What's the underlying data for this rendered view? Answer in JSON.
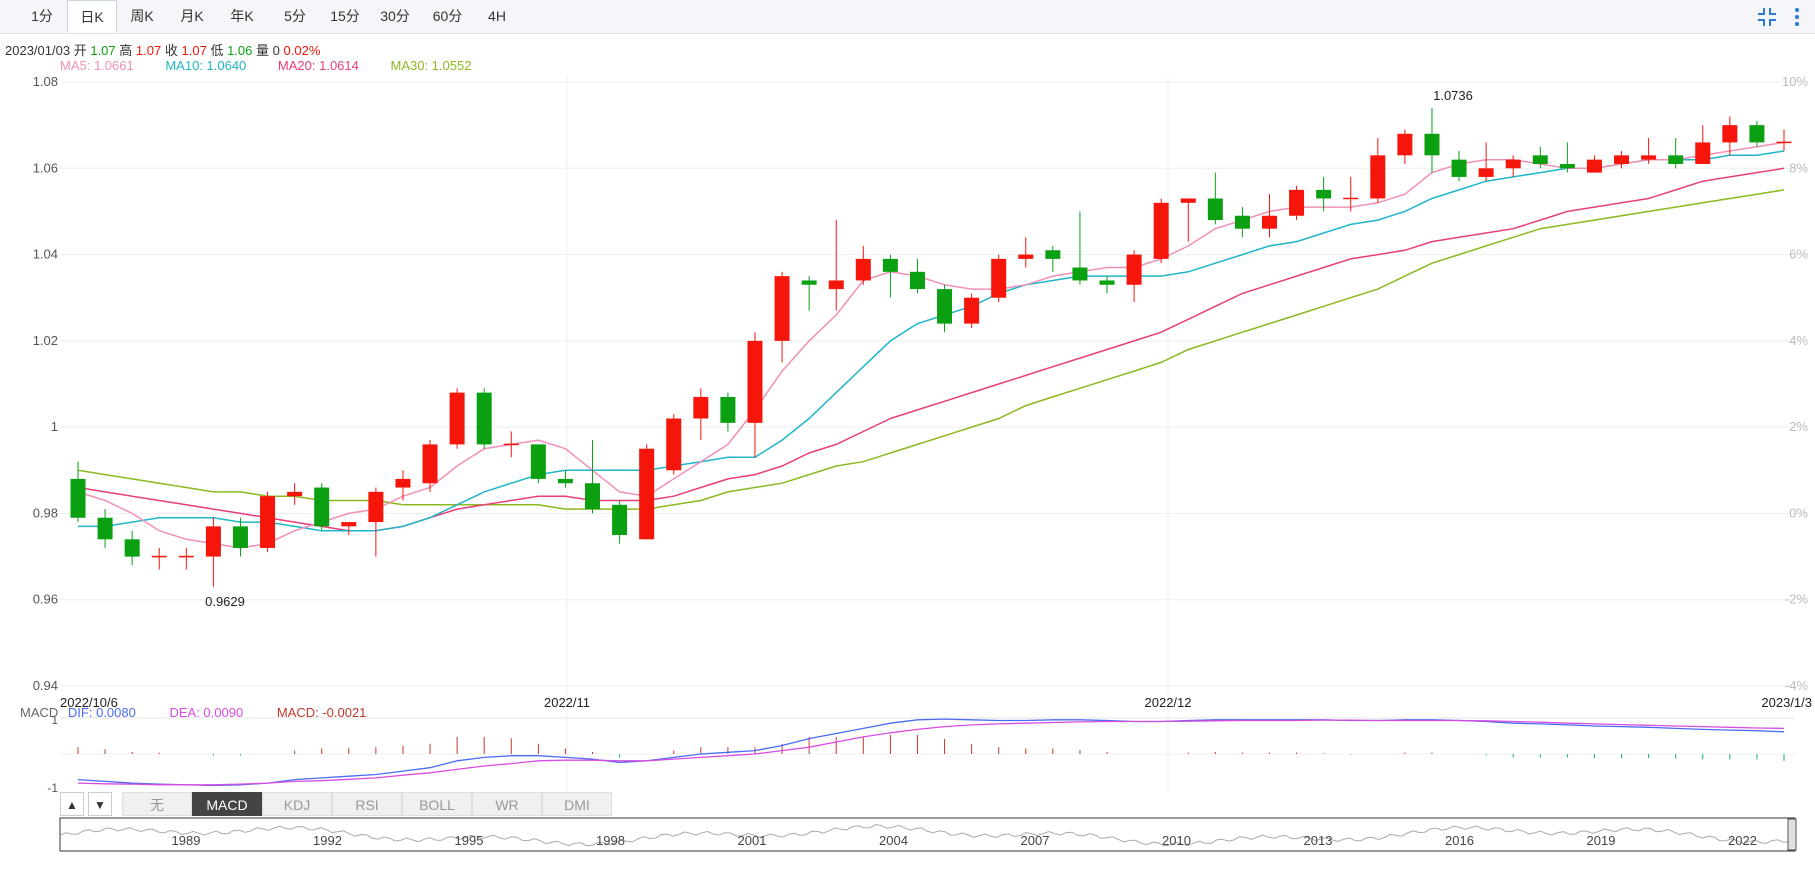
{
  "toolbar": {
    "tabs": [
      "1分",
      "日K",
      "周K",
      "月K",
      "年K",
      "5分",
      "15分",
      "30分",
      "60分",
      "4H"
    ],
    "active": 1
  },
  "info": {
    "date": "2023/01/03",
    "open_label": "开",
    "open": "1.07",
    "high_label": "高",
    "high": "1.07",
    "close_label": "收",
    "close": "1.07",
    "low_label": "低",
    "low": "1.06",
    "vol_label": "量",
    "vol": "0",
    "change": "0.02%"
  },
  "ma": [
    {
      "text": "MA5: 1.0661",
      "color": "#f090b8"
    },
    {
      "text": "MA10: 1.0640",
      "color": "#1fb6c8"
    },
    {
      "text": "MA20: 1.0614",
      "color": "#e83e7a"
    },
    {
      "text": "MA30: 1.0552",
      "color": "#8cb820"
    }
  ],
  "macd_info": {
    "name": "MACD",
    "dif": "DIF: 0.0080",
    "dif_color": "#4a6cf0",
    "dea": "DEA: 0.0090",
    "dea_color": "#d74de0",
    "macd": "MACD: -0.0021",
    "macd_color": "#c0392b"
  },
  "indicators": {
    "tabs": [
      "无",
      "MACD",
      "KDJ",
      "RSI",
      "BOLL",
      "WR",
      "DMI"
    ],
    "active": 1
  },
  "colors": {
    "up": "#f5150a",
    "down": "#0aa012",
    "grid": "#eeeeee"
  },
  "chart_data": {
    "type": "candlestick",
    "ylim": [
      0.94,
      1.08
    ],
    "yticks": [
      "1.08",
      "1.06",
      "1.04",
      "1.02",
      "1",
      "0.98",
      "0.96",
      "0.94"
    ],
    "yticks_right": [
      "10%",
      "8%",
      "6%",
      "4%",
      "2%",
      "0%",
      "-2%",
      "-4%"
    ],
    "xlabels": [
      "2022/10/6",
      "2022/11",
      "2022/12",
      "2023/1/3"
    ],
    "annotations": {
      "high": "1.0736",
      "low": "0.9629"
    },
    "candles": [
      [
        0.988,
        0.979,
        0.992,
        0.978
      ],
      [
        0.979,
        0.974,
        0.981,
        0.972
      ],
      [
        0.974,
        0.97,
        0.976,
        0.968
      ],
      [
        0.97,
        0.97,
        0.972,
        0.967
      ],
      [
        0.97,
        0.97,
        0.972,
        0.967
      ],
      [
        0.97,
        0.977,
        0.979,
        0.963
      ],
      [
        0.977,
        0.972,
        0.979,
        0.97
      ],
      [
        0.972,
        0.984,
        0.985,
        0.971
      ],
      [
        0.984,
        0.985,
        0.987,
        0.982
      ],
      [
        0.986,
        0.977,
        0.987,
        0.976
      ],
      [
        0.977,
        0.978,
        0.978,
        0.975
      ],
      [
        0.978,
        0.985,
        0.986,
        0.97
      ],
      [
        0.986,
        0.988,
        0.99,
        0.983
      ],
      [
        0.987,
        0.996,
        0.997,
        0.985
      ],
      [
        0.996,
        1.008,
        1.009,
        0.995
      ],
      [
        1.008,
        0.996,
        1.009,
        0.995
      ],
      [
        0.996,
        0.996,
        0.999,
        0.993
      ],
      [
        0.996,
        0.988,
        0.996,
        0.987
      ],
      [
        0.988,
        0.987,
        0.99,
        0.986
      ],
      [
        0.987,
        0.981,
        0.997,
        0.98
      ],
      [
        0.982,
        0.975,
        0.983,
        0.973
      ],
      [
        0.974,
        0.995,
        0.996,
        0.974
      ],
      [
        0.99,
        1.002,
        1.003,
        0.989
      ],
      [
        1.002,
        1.007,
        1.009,
        0.997
      ],
      [
        1.007,
        1.001,
        1.008,
        0.999
      ],
      [
        1.001,
        1.02,
        1.022,
        0.993
      ],
      [
        1.02,
        1.035,
        1.036,
        1.015
      ],
      [
        1.034,
        1.033,
        1.035,
        1.027
      ],
      [
        1.032,
        1.034,
        1.048,
        1.027
      ],
      [
        1.034,
        1.039,
        1.042,
        1.033
      ],
      [
        1.039,
        1.036,
        1.04,
        1.03
      ],
      [
        1.036,
        1.032,
        1.039,
        1.031
      ],
      [
        1.032,
        1.024,
        1.033,
        1.022
      ],
      [
        1.024,
        1.03,
        1.031,
        1.023
      ],
      [
        1.03,
        1.039,
        1.04,
        1.029
      ],
      [
        1.039,
        1.04,
        1.044,
        1.037
      ],
      [
        1.041,
        1.039,
        1.042,
        1.036
      ],
      [
        1.037,
        1.034,
        1.05,
        1.033
      ],
      [
        1.034,
        1.033,
        1.035,
        1.031
      ],
      [
        1.033,
        1.04,
        1.041,
        1.029
      ],
      [
        1.039,
        1.052,
        1.053,
        1.038
      ],
      [
        1.052,
        1.053,
        1.053,
        1.043
      ],
      [
        1.053,
        1.048,
        1.059,
        1.047
      ],
      [
        1.049,
        1.046,
        1.051,
        1.044
      ],
      [
        1.046,
        1.049,
        1.054,
        1.044
      ],
      [
        1.049,
        1.055,
        1.056,
        1.048
      ],
      [
        1.055,
        1.053,
        1.058,
        1.05
      ],
      [
        1.053,
        1.053,
        1.058,
        1.05
      ],
      [
        1.053,
        1.063,
        1.067,
        1.052
      ],
      [
        1.063,
        1.068,
        1.069,
        1.061
      ],
      [
        1.068,
        1.063,
        1.074,
        1.059
      ],
      [
        1.062,
        1.058,
        1.064,
        1.057
      ],
      [
        1.058,
        1.06,
        1.066,
        1.057
      ],
      [
        1.06,
        1.062,
        1.063,
        1.058
      ],
      [
        1.063,
        1.061,
        1.065,
        1.06
      ],
      [
        1.061,
        1.06,
        1.066,
        1.059
      ],
      [
        1.059,
        1.062,
        1.063,
        1.059
      ],
      [
        1.061,
        1.063,
        1.064,
        1.06
      ],
      [
        1.062,
        1.063,
        1.067,
        1.061
      ],
      [
        1.063,
        1.061,
        1.067,
        1.06
      ],
      [
        1.061,
        1.066,
        1.07,
        1.061
      ],
      [
        1.066,
        1.07,
        1.072,
        1.063
      ],
      [
        1.07,
        1.066,
        1.071,
        1.065
      ],
      [
        1.066,
        1.066,
        1.069,
        1.064
      ]
    ],
    "ma5": [
      0.985,
      0.983,
      0.98,
      0.976,
      0.974,
      0.973,
      0.972,
      0.973,
      0.976,
      0.978,
      0.98,
      0.981,
      0.984,
      0.986,
      0.991,
      0.995,
      0.996,
      0.997,
      0.995,
      0.99,
      0.985,
      0.984,
      0.988,
      0.992,
      0.996,
      1.004,
      1.013,
      1.02,
      1.026,
      1.034,
      1.036,
      1.035,
      1.033,
      1.032,
      1.032,
      1.033,
      1.035,
      1.036,
      1.037,
      1.037,
      1.039,
      1.042,
      1.046,
      1.048,
      1.05,
      1.051,
      1.051,
      1.051,
      1.052,
      1.054,
      1.059,
      1.061,
      1.062,
      1.062,
      1.061,
      1.06,
      1.06,
      1.061,
      1.062,
      1.062,
      1.063,
      1.064,
      1.065,
      1.066
    ],
    "ma10": [
      0.977,
      0.977,
      0.978,
      0.979,
      0.979,
      0.979,
      0.978,
      0.978,
      0.977,
      0.976,
      0.976,
      0.976,
      0.977,
      0.979,
      0.982,
      0.985,
      0.987,
      0.989,
      0.99,
      0.99,
      0.99,
      0.99,
      0.991,
      0.992,
      0.993,
      0.993,
      0.997,
      1.002,
      1.008,
      1.014,
      1.02,
      1.024,
      1.026,
      1.028,
      1.031,
      1.033,
      1.034,
      1.035,
      1.035,
      1.035,
      1.035,
      1.036,
      1.038,
      1.04,
      1.042,
      1.043,
      1.045,
      1.047,
      1.048,
      1.05,
      1.053,
      1.055,
      1.057,
      1.058,
      1.059,
      1.06,
      1.06,
      1.061,
      1.062,
      1.062,
      1.062,
      1.063,
      1.063,
      1.064
    ],
    "ma20": [
      0.986,
      0.985,
      0.984,
      0.983,
      0.982,
      0.981,
      0.98,
      0.979,
      0.978,
      0.977,
      0.976,
      0.976,
      0.977,
      0.979,
      0.981,
      0.982,
      0.983,
      0.984,
      0.984,
      0.983,
      0.983,
      0.983,
      0.984,
      0.986,
      0.988,
      0.989,
      0.991,
      0.994,
      0.996,
      0.999,
      1.002,
      1.004,
      1.006,
      1.008,
      1.01,
      1.012,
      1.014,
      1.016,
      1.018,
      1.02,
      1.022,
      1.025,
      1.028,
      1.031,
      1.033,
      1.035,
      1.037,
      1.039,
      1.04,
      1.041,
      1.043,
      1.044,
      1.045,
      1.046,
      1.048,
      1.05,
      1.051,
      1.052,
      1.053,
      1.055,
      1.057,
      1.058,
      1.059,
      1.06
    ],
    "ma30": [
      0.99,
      0.989,
      0.988,
      0.987,
      0.986,
      0.985,
      0.985,
      0.984,
      0.984,
      0.983,
      0.983,
      0.983,
      0.982,
      0.982,
      0.982,
      0.982,
      0.982,
      0.982,
      0.981,
      0.981,
      0.981,
      0.981,
      0.982,
      0.983,
      0.985,
      0.986,
      0.987,
      0.989,
      0.991,
      0.992,
      0.994,
      0.996,
      0.998,
      1.0,
      1.002,
      1.005,
      1.007,
      1.009,
      1.011,
      1.013,
      1.015,
      1.018,
      1.02,
      1.022,
      1.024,
      1.026,
      1.028,
      1.03,
      1.032,
      1.035,
      1.038,
      1.04,
      1.042,
      1.044,
      1.046,
      1.047,
      1.048,
      1.049,
      1.05,
      1.051,
      1.052,
      1.053,
      1.054,
      1.055
    ],
    "macd_ylabels": [
      "1",
      "-1"
    ],
    "dif": [
      -0.75,
      -0.8,
      -0.85,
      -0.88,
      -0.9,
      -0.92,
      -0.9,
      -0.85,
      -0.75,
      -0.7,
      -0.65,
      -0.6,
      -0.5,
      -0.4,
      -0.2,
      -0.1,
      -0.05,
      -0.05,
      -0.1,
      -0.15,
      -0.25,
      -0.2,
      -0.1,
      0.0,
      0.05,
      0.1,
      0.25,
      0.45,
      0.6,
      0.75,
      0.9,
      1.0,
      1.02,
      1.0,
      0.98,
      0.98,
      1.0,
      1.0,
      0.98,
      0.95,
      0.95,
      0.98,
      1.0,
      1.0,
      1.0,
      1.0,
      1.0,
      0.98,
      0.98,
      1.0,
      1.0,
      0.98,
      0.95,
      0.9,
      0.88,
      0.85,
      0.82,
      0.8,
      0.78,
      0.75,
      0.72,
      0.7,
      0.68,
      0.65
    ],
    "dea": [
      -0.85,
      -0.87,
      -0.88,
      -0.9,
      -0.9,
      -0.9,
      -0.88,
      -0.85,
      -0.8,
      -0.78,
      -0.74,
      -0.7,
      -0.62,
      -0.55,
      -0.45,
      -0.35,
      -0.28,
      -0.2,
      -0.18,
      -0.18,
      -0.2,
      -0.2,
      -0.15,
      -0.1,
      -0.05,
      0.0,
      0.1,
      0.2,
      0.35,
      0.5,
      0.62,
      0.72,
      0.8,
      0.85,
      0.88,
      0.9,
      0.92,
      0.94,
      0.95,
      0.95,
      0.95,
      0.96,
      0.97,
      0.98,
      0.98,
      0.98,
      0.99,
      0.99,
      0.98,
      0.98,
      0.98,
      0.98,
      0.97,
      0.95,
      0.93,
      0.9,
      0.88,
      0.86,
      0.84,
      0.82,
      0.8,
      0.78,
      0.76,
      0.75
    ],
    "overview_labels": [
      "1989",
      "1992",
      "1995",
      "1998",
      "2001",
      "2004",
      "2007",
      "2010",
      "2013",
      "2016",
      "2019",
      "2022"
    ]
  }
}
